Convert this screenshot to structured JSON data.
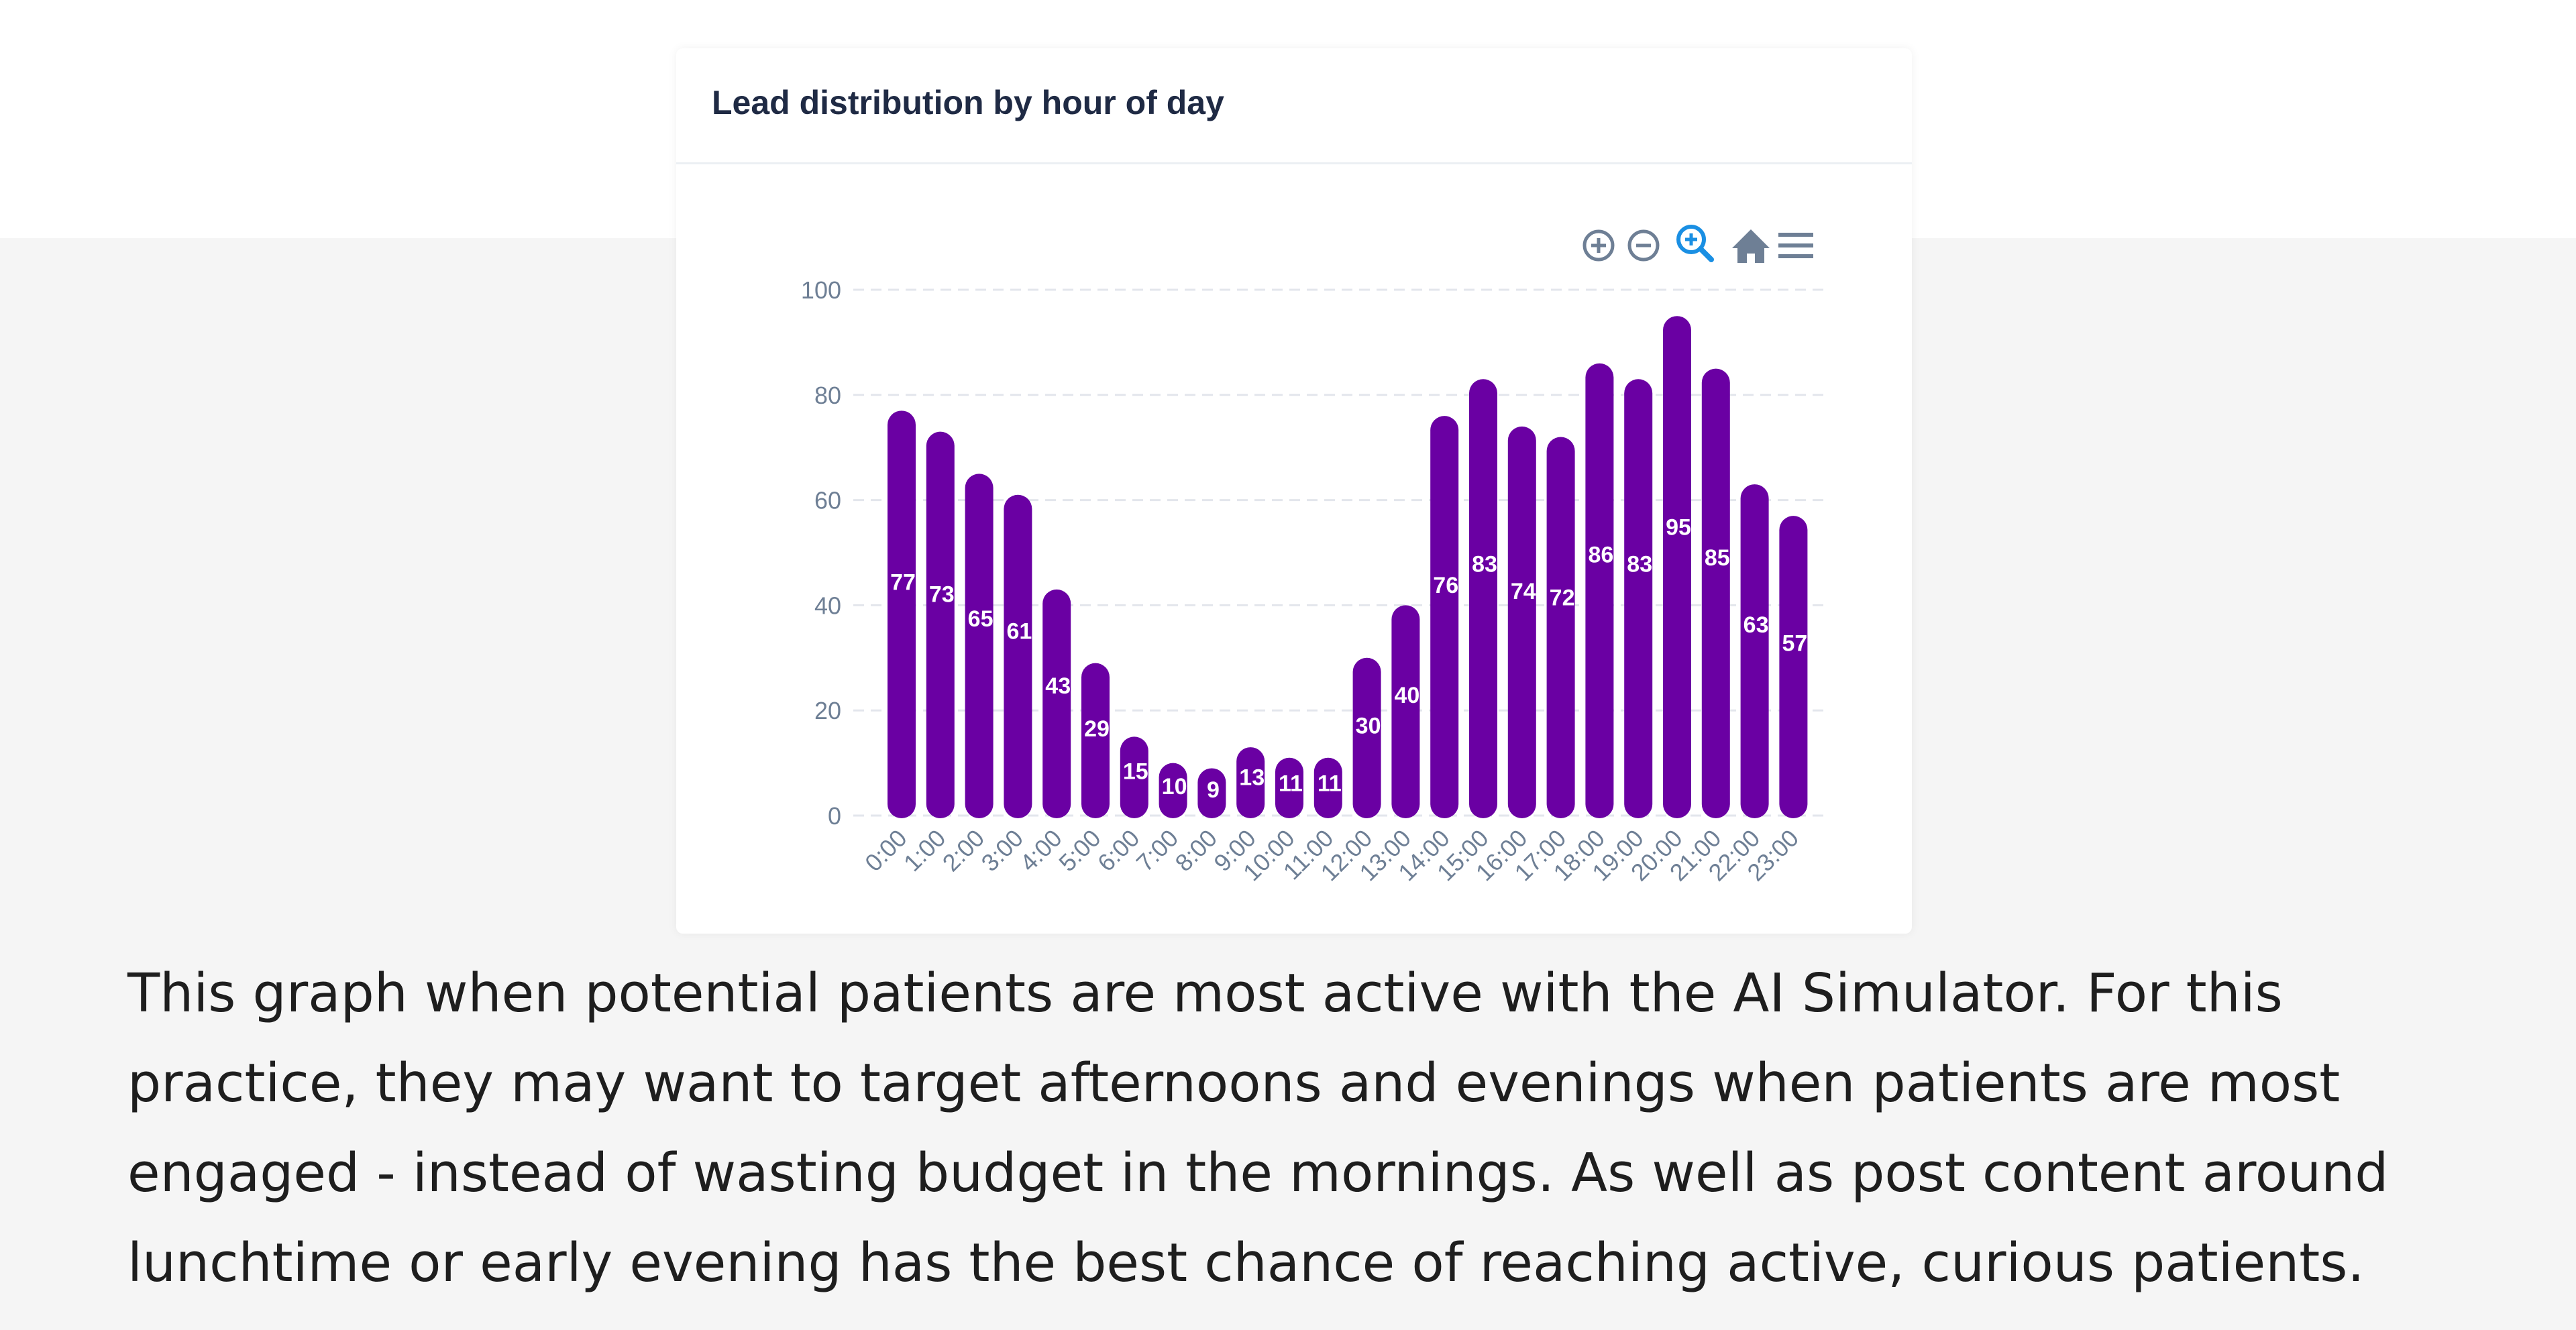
{
  "card": {
    "title": "Lead distribution by hour of day"
  },
  "toolbar": {
    "icons": [
      "zoom-in-icon",
      "zoom-out-icon",
      "selection-zoom-icon",
      "home-icon",
      "menu-icon"
    ],
    "active_color": "#1a8fe3",
    "icon_color": "#6e7f95"
  },
  "chart_data": {
    "type": "bar",
    "categories": [
      "0:00",
      "1:00",
      "2:00",
      "3:00",
      "4:00",
      "5:00",
      "6:00",
      "7:00",
      "8:00",
      "9:00",
      "10:00",
      "11:00",
      "12:00",
      "13:00",
      "14:00",
      "15:00",
      "16:00",
      "17:00",
      "18:00",
      "19:00",
      "20:00",
      "21:00",
      "22:00",
      "23:00"
    ],
    "values": [
      77,
      73,
      65,
      61,
      43,
      29,
      15,
      10,
      9,
      13,
      11,
      11,
      30,
      40,
      76,
      83,
      74,
      72,
      86,
      83,
      95,
      85,
      63,
      57
    ],
    "ylim": [
      0,
      100
    ],
    "yticks": [
      0,
      20,
      40,
      60,
      80,
      100
    ],
    "grid": true,
    "bar_color": "#6a00a3",
    "data_labels": true
  },
  "paragraph": {
    "text": "This graph when potential patients are most active with the AI Simulator. For this practice, they may want to target afternoons and evenings when patients are most engaged - instead of wasting budget in the mornings. As well as post content around lunchtime or early evening has the best chance of reaching active, curious patients."
  }
}
